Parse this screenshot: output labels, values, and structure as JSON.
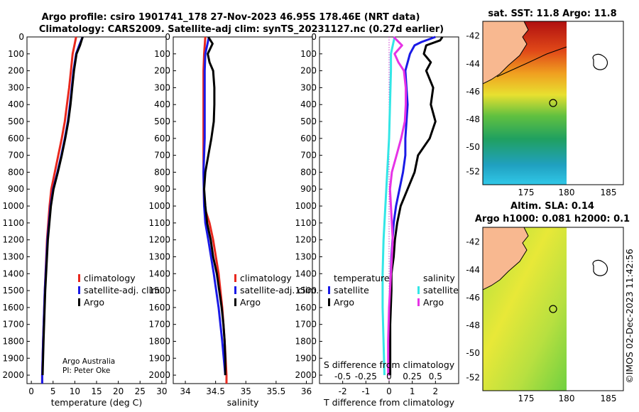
{
  "titles": {
    "main_line1": "Argo profile: csiro 1901741_178 27-Nov-2023 46.95S 178.46E (NRT data)",
    "main_line2": "Climatology: CARS2009. Satellite-adj clim: synTS_20231127.nc (0.27d earlier)",
    "sst": "sat. SST: 11.8 Argo: 11.8",
    "sla_line1": "Altim. SLA: 0.14",
    "sla_line2": "Argo h1000: 0.081 h2000: 0.1"
  },
  "credits": {
    "line1": "Argo Australia",
    "line2": "PI: Peter Oke",
    "imos": "©IMOS 02-Dec-2023 11:42:56"
  },
  "colors": {
    "climatology": "#e8281e",
    "satellite": "#1a1ae6",
    "argo": "#000000",
    "sat_salinity": "#33e6e6",
    "argo_salinity": "#e633e6"
  },
  "chart_data": [
    {
      "type": "line",
      "name": "temperature",
      "xlabel": "temperature (deg C)",
      "ylabel": "",
      "xlim": [
        -1,
        31
      ],
      "ylim": [
        2050,
        0
      ],
      "xticks": [
        0,
        5,
        10,
        15,
        20,
        25,
        30
      ],
      "yticks": [
        0,
        100,
        200,
        300,
        400,
        500,
        600,
        700,
        800,
        900,
        1000,
        1100,
        1200,
        1300,
        1400,
        1500,
        1600,
        1700,
        1800,
        1900,
        2000
      ],
      "legend": [
        "climatology",
        "satellite-adj. clim.",
        "Argo"
      ],
      "series": [
        {
          "name": "climatology",
          "color_key": "climatology",
          "depth": [
            0,
            50,
            100,
            200,
            300,
            400,
            500,
            600,
            700,
            800,
            900,
            1000,
            1200,
            1500,
            1800,
            2000,
            2050
          ],
          "values": [
            10.3,
            9.9,
            9.5,
            9.1,
            8.7,
            8.2,
            7.7,
            7.0,
            6.2,
            5.4,
            4.6,
            4.2,
            3.6,
            3.1,
            2.7,
            2.5,
            2.5
          ]
        },
        {
          "name": "satellite-adj. clim.",
          "color_key": "satellite",
          "depth": [
            0,
            50,
            100,
            200,
            300,
            400,
            500,
            600,
            700,
            800,
            900,
            1000,
            1200,
            1500,
            1800,
            2000,
            2050
          ],
          "values": [
            11.8,
            11.0,
            10.3,
            9.7,
            9.3,
            8.9,
            8.4,
            7.7,
            6.9,
            6.0,
            5.0,
            4.4,
            3.7,
            3.1,
            2.7,
            2.5,
            2.5
          ]
        },
        {
          "name": "Argo",
          "color_key": "argo",
          "depth": [
            0,
            50,
            100,
            200,
            300,
            400,
            500,
            600,
            700,
            800,
            900,
            1000,
            1200,
            1500,
            1800,
            2000
          ],
          "values": [
            11.8,
            11.2,
            10.4,
            9.8,
            9.4,
            9.0,
            8.5,
            7.8,
            7.0,
            6.1,
            5.1,
            4.5,
            3.8,
            3.2,
            2.8,
            2.6
          ]
        }
      ]
    },
    {
      "type": "line",
      "name": "salinity",
      "xlabel": "salinity",
      "xlim": [
        33.8,
        36.1
      ],
      "ylim": [
        2050,
        0
      ],
      "xticks": [
        34,
        34.5,
        35,
        35.5,
        36
      ],
      "legend": [
        "climatology",
        "satellite-adj. clim.",
        "Argo"
      ],
      "series": [
        {
          "name": "climatology",
          "color_key": "climatology",
          "depth": [
            0,
            100,
            200,
            400,
            600,
            800,
            1000,
            1100,
            1200,
            1400,
            1600,
            1800,
            2000,
            2050
          ],
          "values": [
            34.33,
            34.31,
            34.3,
            34.3,
            34.3,
            34.3,
            34.31,
            34.4,
            34.46,
            34.55,
            34.61,
            34.65,
            34.68,
            34.68
          ]
        },
        {
          "name": "satellite-adj. clim.",
          "color_key": "satellite",
          "depth": [
            0,
            100,
            200,
            400,
            600,
            800,
            1000,
            1100,
            1200,
            1400,
            1600,
            1800,
            2000
          ],
          "values": [
            34.39,
            34.33,
            34.32,
            34.32,
            34.32,
            34.3,
            34.31,
            34.33,
            34.38,
            34.47,
            34.55,
            34.61,
            34.66
          ]
        },
        {
          "name": "Argo",
          "color_key": "argo",
          "depth": [
            0,
            40,
            100,
            150,
            200,
            300,
            400,
            500,
            600,
            700,
            800,
            900,
            1000,
            1100,
            1200,
            1300,
            1400,
            1500,
            1600,
            1700,
            1800,
            1900,
            2000
          ],
          "values": [
            34.38,
            34.45,
            34.37,
            34.4,
            34.46,
            34.48,
            34.48,
            34.47,
            34.43,
            34.38,
            34.33,
            34.31,
            34.33,
            34.36,
            34.42,
            34.46,
            34.52,
            34.56,
            34.6,
            34.63,
            34.65,
            34.66,
            34.66
          ]
        }
      ]
    },
    {
      "type": "line",
      "name": "difference_from_climatology",
      "xlabel": "T difference from climatology",
      "xlabel_top": "S difference from climatology",
      "xlim": [
        -3,
        3
      ],
      "ylim": [
        2050,
        0
      ],
      "xticks": [
        -2,
        -1,
        0,
        1,
        2
      ],
      "xticks_salinity": [
        "-0.5",
        "-0.25",
        "0",
        "0.25",
        "0.5"
      ],
      "legend_headers": [
        "temperature",
        "salinity"
      ],
      "legend_temperature": [
        "satellite",
        "Argo"
      ],
      "legend_salinity": [
        "satellite",
        "Argo"
      ],
      "series": [
        {
          "name": "T satellite",
          "color_key": "satellite",
          "depth": [
            0,
            30,
            50,
            100,
            200,
            300,
            400,
            500,
            600,
            700,
            800,
            900,
            1000,
            1100,
            1200,
            1300,
            1500,
            1700,
            2000
          ],
          "values": [
            2.0,
            1.4,
            1.1,
            0.9,
            0.7,
            0.75,
            0.8,
            0.75,
            0.7,
            0.7,
            0.6,
            0.45,
            0.3,
            0.2,
            0.15,
            0.1,
            0.05,
            0.02,
            0.0
          ]
        },
        {
          "name": "T Argo",
          "color_key": "argo",
          "depth": [
            0,
            20,
            50,
            100,
            150,
            200,
            300,
            400,
            500,
            600,
            700,
            800,
            900,
            1000,
            1100,
            1200,
            1300,
            1400,
            1500,
            1700,
            2000
          ],
          "values": [
            2.3,
            2.2,
            1.6,
            1.5,
            1.8,
            1.6,
            1.9,
            1.8,
            2.0,
            1.75,
            1.25,
            1.1,
            0.8,
            0.5,
            0.35,
            0.25,
            0.2,
            0.1,
            0.1,
            0.05,
            0.05
          ]
        },
        {
          "name": "S satellite",
          "color_key": "sat_salinity",
          "depth": [
            0,
            100,
            200,
            400,
            600,
            800,
            1000,
            1200,
            1400,
            1600,
            1800,
            2000
          ],
          "values": [
            0.06,
            0.02,
            0.02,
            0.01,
            0.0,
            -0.02,
            -0.04,
            -0.06,
            -0.07,
            -0.07,
            -0.06,
            -0.05
          ]
        },
        {
          "name": "S Argo",
          "color_key": "argo_salinity",
          "depth": [
            0,
            50,
            100,
            150,
            200,
            300,
            400,
            500,
            600,
            700,
            800,
            900,
            1000,
            1200,
            1400,
            1600,
            1800,
            2000
          ],
          "values": [
            0.05,
            0.14,
            0.06,
            0.1,
            0.16,
            0.18,
            0.18,
            0.17,
            0.13,
            0.08,
            0.03,
            0.01,
            0.02,
            0.04,
            0.02,
            0.0,
            -0.01,
            -0.01
          ]
        }
      ]
    }
  ],
  "maps": {
    "lon_ticks": [
      "175",
      "180",
      "185"
    ],
    "lat_ticks": [
      "-42",
      "-44",
      "-46",
      "-48",
      "-50",
      "-52"
    ]
  }
}
